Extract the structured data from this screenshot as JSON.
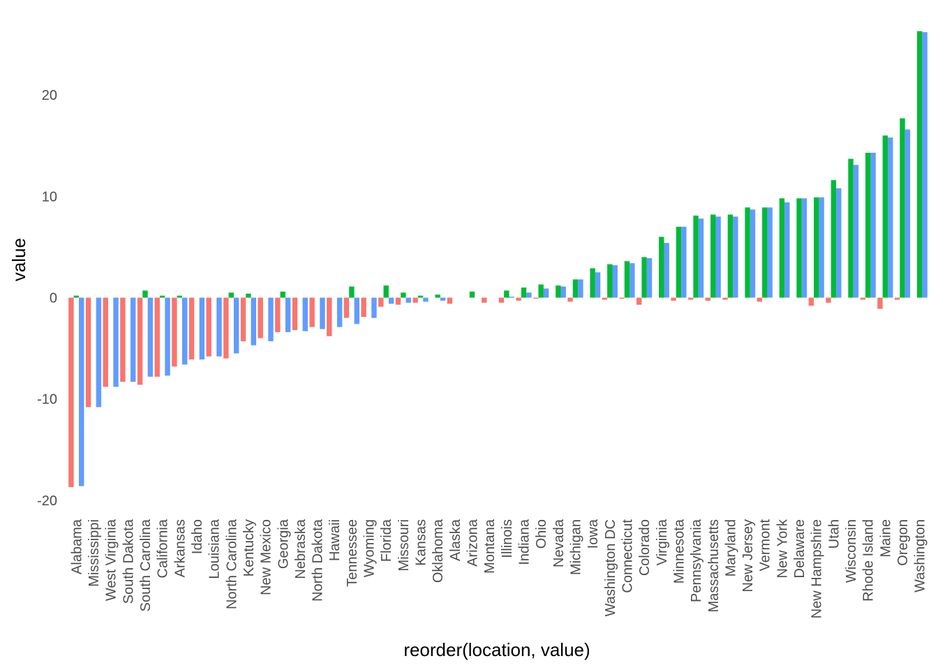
{
  "chart_data": {
    "type": "bar",
    "xlabel": "reorder(location, value)",
    "ylabel": "value",
    "ylim": [
      -20.5,
      26.5
    ],
    "yticks": [
      -20,
      -10,
      0,
      10,
      20
    ],
    "grid": false,
    "legend": "none",
    "categories": [
      "Alabama",
      "Mississippi",
      "West Virginia",
      "South Dakota",
      "South Carolina",
      "California",
      "Arkansas",
      "Idaho",
      "Louisiana",
      "North Carolina",
      "Kentucky",
      "New Mexico",
      "Georgia",
      "Nebraska",
      "North Dakota",
      "Hawaii",
      "Tennessee",
      "Wyoming",
      "Florida",
      "Missouri",
      "Kansas",
      "Oklahoma",
      "Alaska",
      "Arizona",
      "Montana",
      "Illinois",
      "Indiana",
      "Ohio",
      "Nevada",
      "Michigan",
      "Iowa",
      "Washington DC",
      "Connecticut",
      "Colorado",
      "Virginia",
      "Minnesota",
      "Pennsylvania",
      "Massachusetts",
      "Maryland",
      "New Jersey",
      "Vermont",
      "New York",
      "Delaware",
      "New Hampshire",
      "Utah",
      "Wisconsin",
      "Rhode Island",
      "Maine",
      "Oregon",
      "Washington"
    ],
    "series": [
      {
        "color": "#F8766D",
        "values": [
          -18.7,
          -10.8,
          -8.8,
          -8.3,
          -8.6,
          -7.8,
          -6.8,
          -6.1,
          -5.8,
          -6.0,
          -4.3,
          -4.0,
          -3.4,
          -3.2,
          -2.9,
          -3.8,
          -2.0,
          -1.9,
          -0.9,
          -0.7,
          -0.5,
          0.0,
          -0.6,
          0.0,
          -0.5,
          -0.5,
          -0.3,
          -0.1,
          0.0,
          -0.4,
          0.0,
          -0.2,
          -0.1,
          -0.7,
          0.0,
          -0.3,
          -0.2,
          -0.3,
          -0.2,
          0.0,
          -0.4,
          0.0,
          0.0,
          -0.8,
          -0.5,
          0.0,
          -0.2,
          -1.1,
          -0.2,
          0.0
        ]
      },
      {
        "color": "#00BA38",
        "values": [
          0.2,
          0.0,
          0.0,
          0.0,
          0.7,
          0.2,
          0.2,
          0.0,
          0.0,
          0.5,
          0.4,
          0.0,
          0.6,
          0.0,
          0.0,
          0.0,
          1.1,
          0.0,
          1.2,
          0.5,
          0.2,
          0.3,
          0.0,
          0.6,
          0.0,
          0.7,
          1.0,
          1.3,
          1.2,
          1.8,
          2.9,
          3.3,
          3.6,
          4.0,
          6.0,
          7.0,
          8.1,
          8.2,
          8.2,
          8.9,
          8.9,
          9.8,
          9.8,
          9.9,
          11.6,
          13.7,
          14.3,
          16.0,
          17.7,
          26.3
        ]
      },
      {
        "color": "#619CFF",
        "values": [
          -18.6,
          -10.8,
          -8.8,
          -8.3,
          -7.8,
          -7.7,
          -6.6,
          -6.1,
          -5.8,
          -5.5,
          -4.7,
          -4.3,
          -3.4,
          -3.3,
          -3.1,
          -2.9,
          -2.6,
          -2.0,
          -0.6,
          -0.5,
          -0.4,
          -0.3,
          0.0,
          0.0,
          0.0,
          0.1,
          0.5,
          0.9,
          1.1,
          1.8,
          2.5,
          3.2,
          3.4,
          3.9,
          5.4,
          7.0,
          7.8,
          8.0,
          8.0,
          8.7,
          8.9,
          9.4,
          9.8,
          9.9,
          10.8,
          13.1,
          14.3,
          15.8,
          16.6,
          26.2
        ]
      }
    ]
  }
}
